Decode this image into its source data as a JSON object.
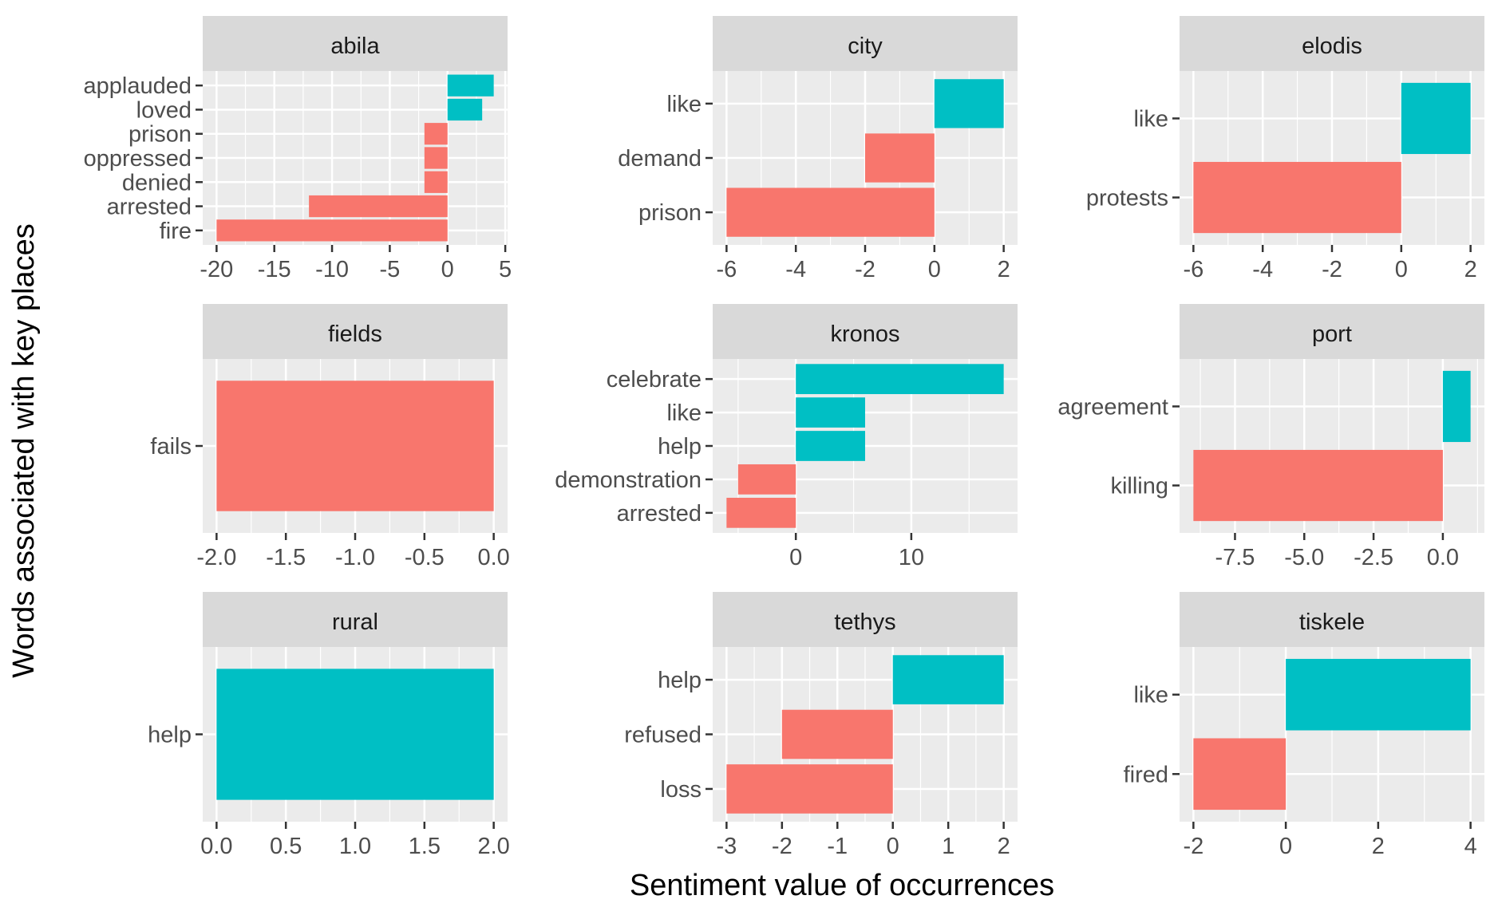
{
  "colors": {
    "positive": "#00BFC4",
    "negative": "#F8766D",
    "panel_background": "#EBEBEB",
    "strip_background": "#D9D9D9",
    "grid": "#FFFFFF",
    "tick_text": "#4D4D4D"
  },
  "chart_data": {
    "type": "bar",
    "orientation": "horizontal",
    "layout": "facet-grid 3x3",
    "xlabel": "Sentiment value of occurrences",
    "ylabel": "Words associated with key places",
    "grid": true,
    "legend": "none",
    "panels": [
      {
        "facet": "abila",
        "xlim": [
          -20,
          4
        ],
        "xticks": [
          -20,
          -15,
          -10,
          -5,
          0,
          5
        ],
        "xtick_labels": [
          "-20",
          "-15",
          "-10",
          "-5",
          "0",
          "5"
        ],
        "bars": [
          {
            "word": "applauded",
            "value": 4,
            "sentiment": "positive"
          },
          {
            "word": "loved",
            "value": 3,
            "sentiment": "positive"
          },
          {
            "word": "prison",
            "value": -2,
            "sentiment": "negative"
          },
          {
            "word": "oppressed",
            "value": -2,
            "sentiment": "negative"
          },
          {
            "word": "denied",
            "value": -2,
            "sentiment": "negative"
          },
          {
            "word": "arrested",
            "value": -12,
            "sentiment": "negative"
          },
          {
            "word": "fire",
            "value": -20,
            "sentiment": "negative"
          }
        ]
      },
      {
        "facet": "city",
        "xlim": [
          -6,
          2
        ],
        "xticks": [
          -6,
          -4,
          -2,
          0,
          2
        ],
        "xtick_labels": [
          "-6",
          "-4",
          "-2",
          "0",
          "2"
        ],
        "bars": [
          {
            "word": "like",
            "value": 2,
            "sentiment": "positive"
          },
          {
            "word": "demand",
            "value": -2,
            "sentiment": "negative"
          },
          {
            "word": "prison",
            "value": -6,
            "sentiment": "negative"
          }
        ]
      },
      {
        "facet": "elodis",
        "xlim": [
          -6,
          2
        ],
        "xticks": [
          -6,
          -4,
          -2,
          0,
          2
        ],
        "xtick_labels": [
          "-6",
          "-4",
          "-2",
          "0",
          "2"
        ],
        "bars": [
          {
            "word": "like",
            "value": 2,
            "sentiment": "positive"
          },
          {
            "word": "protests",
            "value": -6,
            "sentiment": "negative"
          }
        ]
      },
      {
        "facet": "fields",
        "xlim": [
          -2,
          0
        ],
        "xticks": [
          -2,
          -1.5,
          -1,
          -0.5,
          0
        ],
        "xtick_labels": [
          "-2.0",
          "-1.5",
          "-1.0",
          "-0.5",
          "0.0"
        ],
        "bars": [
          {
            "word": "fails",
            "value": -2,
            "sentiment": "negative"
          }
        ]
      },
      {
        "facet": "kronos",
        "xlim": [
          -6,
          18
        ],
        "xticks": [
          0,
          10
        ],
        "xtick_labels": [
          "0",
          "10"
        ],
        "bars": [
          {
            "word": "celebrate",
            "value": 18,
            "sentiment": "positive"
          },
          {
            "word": "like",
            "value": 6,
            "sentiment": "positive"
          },
          {
            "word": "help",
            "value": 6,
            "sentiment": "positive"
          },
          {
            "word": "demonstration",
            "value": -5,
            "sentiment": "negative"
          },
          {
            "word": "arrested",
            "value": -6,
            "sentiment": "negative"
          }
        ]
      },
      {
        "facet": "port",
        "xlim": [
          -9,
          1
        ],
        "xticks": [
          -7.5,
          -5,
          -2.5,
          0
        ],
        "xtick_labels": [
          "-7.5",
          "-5.0",
          "-2.5",
          "0.0"
        ],
        "bars": [
          {
            "word": "agreement",
            "value": 1,
            "sentiment": "positive"
          },
          {
            "word": "killing",
            "value": -9,
            "sentiment": "negative"
          }
        ]
      },
      {
        "facet": "rural",
        "xlim": [
          0,
          2
        ],
        "xticks": [
          0,
          0.5,
          1,
          1.5,
          2
        ],
        "xtick_labels": [
          "0.0",
          "0.5",
          "1.0",
          "1.5",
          "2.0"
        ],
        "bars": [
          {
            "word": "help",
            "value": 2,
            "sentiment": "positive"
          }
        ]
      },
      {
        "facet": "tethys",
        "xlim": [
          -3,
          2
        ],
        "xticks": [
          -3,
          -2,
          -1,
          0,
          1,
          2
        ],
        "xtick_labels": [
          "-3",
          "-2",
          "-1",
          "0",
          "1",
          "2"
        ],
        "bars": [
          {
            "word": "help",
            "value": 2,
            "sentiment": "positive"
          },
          {
            "word": "refused",
            "value": -2,
            "sentiment": "negative"
          },
          {
            "word": "loss",
            "value": -3,
            "sentiment": "negative"
          }
        ]
      },
      {
        "facet": "tiskele",
        "xlim": [
          -2,
          4
        ],
        "xticks": [
          -2,
          0,
          2,
          4
        ],
        "xtick_labels": [
          "-2",
          "0",
          "2",
          "4"
        ],
        "bars": [
          {
            "word": "like",
            "value": 4,
            "sentiment": "positive"
          },
          {
            "word": "fired",
            "value": -2,
            "sentiment": "negative"
          }
        ]
      }
    ]
  }
}
